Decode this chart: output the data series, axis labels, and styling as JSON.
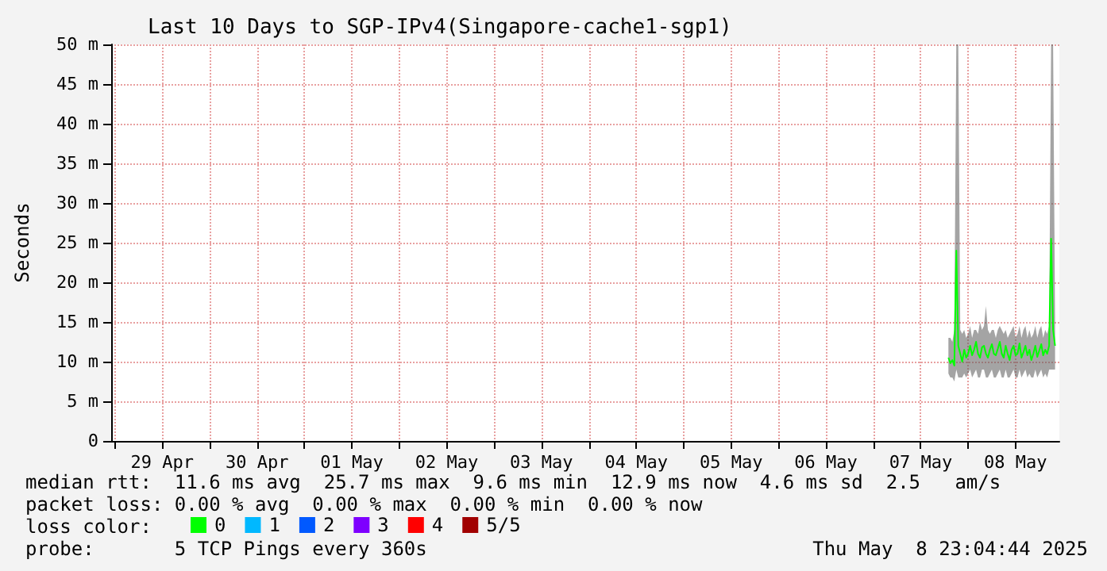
{
  "chart_data": {
    "type": "line",
    "title": "Last 10 Days to SGP-IPv4(Singapore-cache1-sgp1)",
    "ylabel": "Seconds",
    "legend_title": "loss color:",
    "annotations": [
      "median rtt:  11.6 ms avg  25.7 ms max  9.6 ms min  12.9 ms now  4.6 ms sd  2.5   am/s",
      "packet loss: 0.00 % avg  0.00 % max  0.00 % min  0.00 % now",
      "probe:       5 TCP Pings every 360s",
      "Thu May  8 23:04:44 2025"
    ],
    "x": [
      "2025-05-07T19:00",
      "2025-05-07T19:30",
      "2025-05-07T20:00",
      "2025-05-07T20:30",
      "2025-05-07T21:00",
      "2025-05-07T21:30",
      "2025-05-07T22:00",
      "2025-05-07T22:30",
      "2025-05-07T23:00",
      "2025-05-07T23:30",
      "2025-05-08T00:00",
      "2025-05-08T00:30",
      "2025-05-08T01:00",
      "2025-05-08T01:30",
      "2025-05-08T02:00",
      "2025-05-08T02:30",
      "2025-05-08T03:00",
      "2025-05-08T03:30",
      "2025-05-08T04:00",
      "2025-05-08T04:30",
      "2025-05-08T05:00",
      "2025-05-08T05:30",
      "2025-05-08T06:00",
      "2025-05-08T06:30",
      "2025-05-08T07:00",
      "2025-05-08T07:30",
      "2025-05-08T08:00",
      "2025-05-08T08:30",
      "2025-05-08T09:00",
      "2025-05-08T09:30",
      "2025-05-08T10:00",
      "2025-05-08T10:30",
      "2025-05-08T11:00",
      "2025-05-08T11:30",
      "2025-05-08T12:00",
      "2025-05-08T12:30",
      "2025-05-08T13:00",
      "2025-05-08T13:30",
      "2025-05-08T14:00",
      "2025-05-08T14:30",
      "2025-05-08T15:00",
      "2025-05-08T15:30",
      "2025-05-08T16:00",
      "2025-05-08T16:30",
      "2025-05-08T17:00",
      "2025-05-08T17:30",
      "2025-05-08T18:00",
      "2025-05-08T18:30",
      "2025-05-08T19:00",
      "2025-05-08T19:30",
      "2025-05-08T20:00",
      "2025-05-08T20:30",
      "2025-05-08T21:00",
      "2025-05-08T21:30",
      "2025-05-08T22:00"
    ],
    "series": [
      {
        "name": "0",
        "color": "#00ff00",
        "values": [
          10.5,
          9.8,
          10.2,
          9.5,
          24,
          12,
          11,
          10,
          11.5,
          10.5,
          11,
          12,
          10.8,
          11.5,
          12.5,
          11,
          10.5,
          11.8,
          12,
          11,
          10.5,
          11.5,
          12.2,
          11,
          10.8,
          11.6,
          12.5,
          11,
          10.5,
          12,
          11,
          10.2,
          11.5,
          12,
          10.8,
          11,
          12.3,
          10.5,
          11.2,
          12,
          10.8,
          11.5,
          10.2,
          11,
          12,
          10.6,
          11.4,
          12.2,
          10.8,
          11.5,
          11,
          12,
          25.5,
          14,
          12
        ],
        "lower": [
          8.5,
          8,
          8,
          7.5,
          9,
          8,
          8,
          8,
          8.5,
          8,
          8.5,
          9,
          8,
          8.5,
          9,
          8,
          8,
          9,
          9,
          8,
          8,
          8.5,
          9,
          8,
          8,
          8.5,
          9,
          8,
          8,
          9,
          8,
          8,
          8.5,
          9,
          8,
          8,
          9,
          8,
          8.5,
          9,
          8,
          8.5,
          8,
          8,
          9,
          8,
          8.5,
          9,
          8,
          8.5,
          8,
          9,
          9,
          9,
          9
        ],
        "upper": [
          13,
          13,
          12.5,
          14,
          50,
          50,
          14,
          13.5,
          14,
          13,
          13.5,
          14.5,
          13,
          14,
          14,
          13.5,
          15,
          14,
          14.5,
          17,
          14,
          13.5,
          14,
          14,
          13,
          14,
          14.5,
          14,
          13.5,
          14,
          13,
          13.5,
          14,
          14.5,
          13,
          13.5,
          14.5,
          13,
          14,
          14.5,
          13,
          14,
          13,
          13.5,
          14.5,
          13,
          14,
          14.5,
          13,
          14,
          13.5,
          14.5,
          50,
          50,
          15
        ]
      },
      {
        "name": "1",
        "color": "#00b8ff",
        "values": [
          null,
          null,
          null,
          null,
          null,
          null,
          null,
          null,
          null,
          null,
          null,
          null,
          null,
          null,
          null,
          null,
          null,
          null,
          null,
          null,
          null,
          null,
          null,
          null,
          null,
          null,
          null,
          null,
          null,
          null,
          null,
          null,
          null,
          null,
          null,
          null,
          null,
          null,
          null,
          null,
          null,
          null,
          null,
          null,
          null,
          null,
          null,
          null,
          null,
          null,
          null,
          null,
          null,
          null,
          null
        ]
      },
      {
        "name": "2",
        "color": "#0059ff",
        "values": [
          null,
          null,
          null,
          null,
          null,
          null,
          null,
          null,
          null,
          null,
          null,
          null,
          null,
          null,
          null,
          null,
          null,
          null,
          null,
          null,
          null,
          null,
          null,
          null,
          null,
          null,
          null,
          null,
          null,
          null,
          null,
          null,
          null,
          null,
          null,
          null,
          null,
          null,
          null,
          null,
          null,
          null,
          null,
          null,
          null,
          null,
          null,
          null,
          null,
          null,
          null,
          null,
          null,
          null,
          null
        ]
      },
      {
        "name": "3",
        "color": "#7e00ff",
        "values": [
          null,
          null,
          null,
          null,
          null,
          null,
          null,
          null,
          null,
          null,
          null,
          null,
          null,
          null,
          null,
          null,
          null,
          null,
          null,
          null,
          null,
          null,
          null,
          null,
          null,
          null,
          null,
          null,
          null,
          null,
          null,
          null,
          null,
          null,
          null,
          null,
          null,
          null,
          null,
          null,
          null,
          null,
          null,
          null,
          null,
          null,
          null,
          null,
          null,
          null,
          null,
          null,
          null,
          null,
          null
        ]
      },
      {
        "name": "4",
        "color": "#ff0000",
        "values": [
          null,
          null,
          null,
          null,
          null,
          null,
          null,
          null,
          null,
          null,
          null,
          null,
          null,
          null,
          null,
          null,
          null,
          null,
          null,
          null,
          null,
          null,
          null,
          null,
          null,
          null,
          null,
          null,
          null,
          null,
          null,
          null,
          null,
          null,
          null,
          null,
          null,
          null,
          null,
          null,
          null,
          null,
          null,
          null,
          null,
          null,
          null,
          null,
          null,
          null,
          null,
          null,
          null,
          null,
          null
        ]
      },
      {
        "name": "5/5",
        "color": "#a10000",
        "values": [
          null,
          null,
          null,
          null,
          null,
          null,
          null,
          null,
          null,
          null,
          null,
          null,
          null,
          null,
          null,
          null,
          null,
          null,
          null,
          null,
          null,
          null,
          null,
          null,
          null,
          null,
          null,
          null,
          null,
          null,
          null,
          null,
          null,
          null,
          null,
          null,
          null,
          null,
          null,
          null,
          null,
          null,
          null,
          null,
          null,
          null,
          null,
          null,
          null,
          null,
          null,
          null,
          null,
          null,
          null
        ]
      }
    ],
    "xlim": [
      "2025-04-28T23:05",
      "2025-05-08T23:05"
    ],
    "xticks": [
      {
        "value": "2025-04-29T00:00",
        "label": null
      },
      {
        "value": "2025-04-29T12:00",
        "label": "29 Apr"
      },
      {
        "value": "2025-04-30T00:00",
        "label": null
      },
      {
        "value": "2025-04-30T12:00",
        "label": "30 Apr"
      },
      {
        "value": "2025-05-01T00:00",
        "label": null
      },
      {
        "value": "2025-05-01T12:00",
        "label": "01 May"
      },
      {
        "value": "2025-05-02T00:00",
        "label": null
      },
      {
        "value": "2025-05-02T12:00",
        "label": "02 May"
      },
      {
        "value": "2025-05-03T00:00",
        "label": null
      },
      {
        "value": "2025-05-03T12:00",
        "label": "03 May"
      },
      {
        "value": "2025-05-04T00:00",
        "label": null
      },
      {
        "value": "2025-05-04T12:00",
        "label": "04 May"
      },
      {
        "value": "2025-05-05T00:00",
        "label": null
      },
      {
        "value": "2025-05-05T12:00",
        "label": "05 May"
      },
      {
        "value": "2025-05-06T00:00",
        "label": null
      },
      {
        "value": "2025-05-06T12:00",
        "label": "06 May"
      },
      {
        "value": "2025-05-07T00:00",
        "label": null
      },
      {
        "value": "2025-05-07T12:00",
        "label": "07 May"
      },
      {
        "value": "2025-05-08T00:00",
        "label": null
      },
      {
        "value": "2025-05-08T12:00",
        "label": "08 May"
      }
    ],
    "ylim": [
      0,
      50
    ],
    "yticks": [
      0,
      {
        "value": 5,
        "label": "5 m"
      },
      {
        "value": 10,
        "label": "10 m"
      },
      {
        "value": 15,
        "label": "15 m"
      },
      {
        "value": 20,
        "label": "20 m"
      },
      {
        "value": 25,
        "label": "25 m"
      },
      {
        "value": 30,
        "label": "30 m"
      },
      {
        "value": 35,
        "label": "35 m"
      },
      {
        "value": 40,
        "label": "40 m"
      },
      {
        "value": 45,
        "label": "45 m"
      },
      {
        "value": 50,
        "label": "50 m"
      }
    ],
    "grid": true,
    "legend": "bottom"
  }
}
